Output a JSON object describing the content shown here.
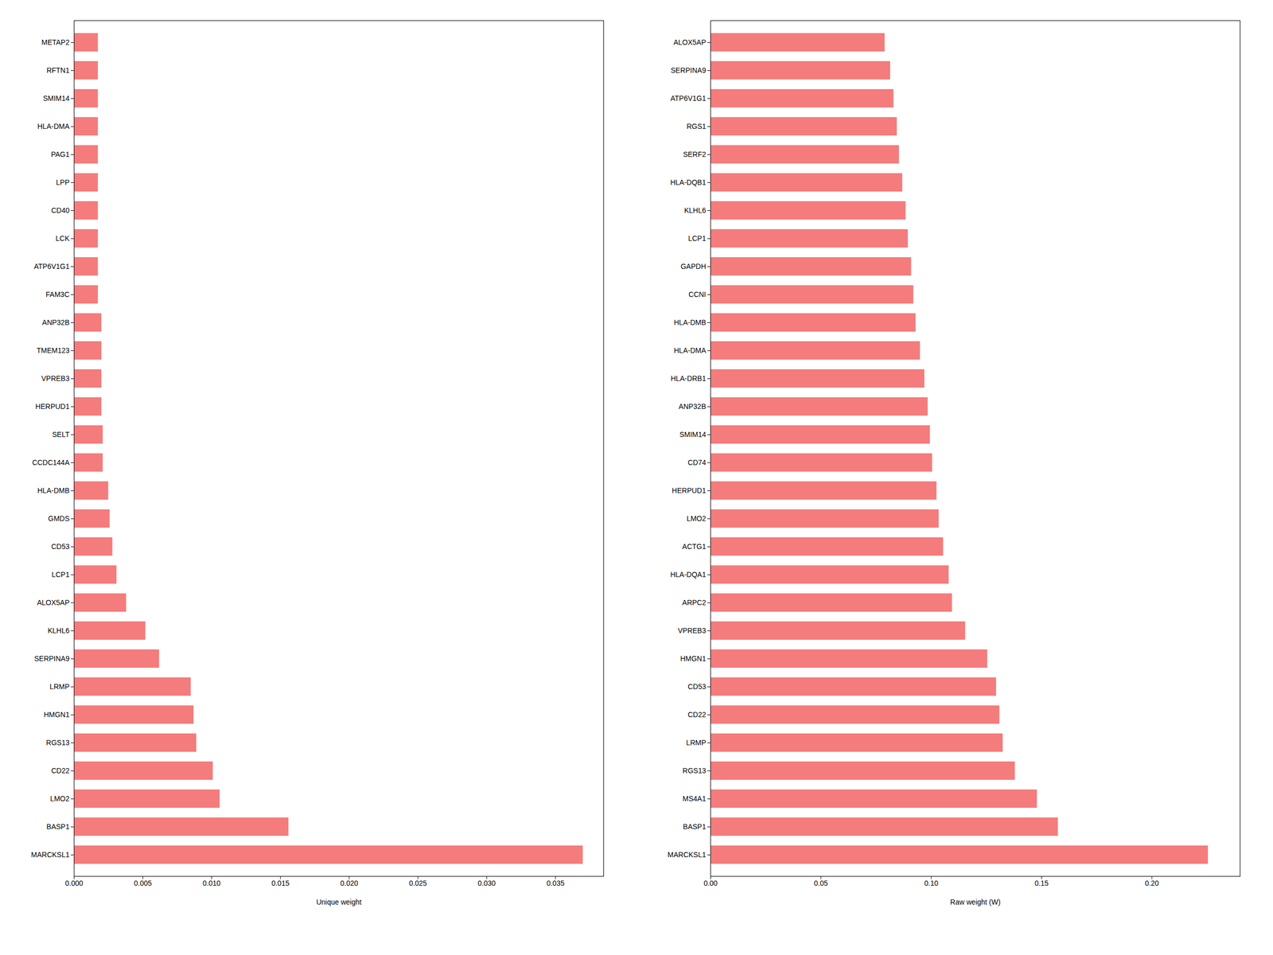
{
  "chart_data": [
    {
      "type": "bar",
      "orientation": "horizontal",
      "categories": [
        "METAP2",
        "RFTN1",
        "SMIM14",
        "HLA-DMA",
        "PAG1",
        "LPP",
        "CD40",
        "LCK",
        "ATP6V1G1",
        "FAM3C",
        "ANP32B",
        "TMEM123",
        "VPREB3",
        "HERPUD1",
        "SELT",
        "CCDC144A",
        "HLA-DMB",
        "GMDS",
        "CD53",
        "LCP1",
        "ALOX5AP",
        "KLHL6",
        "SERPINA9",
        "LRMP",
        "HMGN1",
        "RGS13",
        "CD22",
        "LMO2",
        "BASP1",
        "MARCKSL1"
      ],
      "values": [
        0.00175,
        0.00175,
        0.00175,
        0.00175,
        0.00175,
        0.00175,
        0.00175,
        0.00175,
        0.00175,
        0.00175,
        0.002,
        0.002,
        0.002,
        0.002,
        0.0021,
        0.0021,
        0.0025,
        0.0026,
        0.0028,
        0.0031,
        0.0038,
        0.0052,
        0.0062,
        0.0085,
        0.0087,
        0.0089,
        0.0101,
        0.0106,
        0.0156,
        0.037
      ],
      "color": "#F47C7C",
      "xlabel": "Unique weight",
      "xlim": [
        0,
        0.0385
      ],
      "xticks": [
        {
          "value": 0,
          "label": "0.000"
        },
        0.005,
        {
          "value": 0.01,
          "label": "0.010"
        },
        0.015,
        {
          "value": 0.02,
          "label": "0.020"
        },
        0.025,
        {
          "value": 0.03,
          "label": "0.030"
        },
        0.035
      ],
      "grid": false
    },
    {
      "type": "bar",
      "orientation": "horizontal",
      "categories": [
        "ALOX5AP",
        "SERPINA9",
        "ATP6V1G1",
        "RGS1",
        "SERF2",
        "HLA-DQB1",
        "KLHL6",
        "LCP1",
        "GAPDH",
        "CCNI",
        "HLA-DMB",
        "HLA-DMA",
        "HLA-DRB1",
        "ANP32B",
        "SMIM14",
        "CD74",
        "HERPUD1",
        "LMO2",
        "ACTG1",
        "HLA-DQA1",
        "ARPC2",
        "VPREB3",
        "HMGN1",
        "CD53",
        "CD22",
        "LRMP",
        "RGS13",
        "MS4A1",
        "BASP1",
        "MARCKSL1"
      ],
      "values": [
        0.079,
        0.0815,
        0.083,
        0.0845,
        0.0855,
        0.087,
        0.0885,
        0.0895,
        0.091,
        0.092,
        0.093,
        0.095,
        0.097,
        0.0985,
        0.0995,
        0.1005,
        0.1025,
        0.1035,
        0.1055,
        0.108,
        0.1095,
        0.1155,
        0.1255,
        0.1295,
        0.131,
        0.1325,
        0.138,
        0.148,
        0.1575,
        0.2255
      ],
      "color": "#F47C7C",
      "xlabel": "Raw weight (W)",
      "xlim": [
        0,
        0.24
      ],
      "xticks": [
        {
          "value": 0,
          "label": "0.00"
        },
        0.05,
        {
          "value": 0.1,
          "label": "0.10"
        },
        0.15,
        {
          "value": 0.2,
          "label": "0.20"
        }
      ],
      "grid": false
    }
  ]
}
